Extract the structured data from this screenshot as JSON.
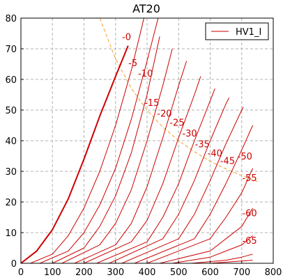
{
  "chart_data": {
    "type": "line",
    "title": "AT20",
    "xlabel": "",
    "ylabel": "",
    "xlim": [
      0,
      800
    ],
    "ylim": [
      0,
      80
    ],
    "xticks": [
      "0",
      "100",
      "200",
      "300",
      "400",
      "500",
      "600",
      "700",
      "800"
    ],
    "yticks": [
      "0",
      "10",
      "20",
      "30",
      "40",
      "50",
      "60",
      "70",
      "80"
    ],
    "grid": true,
    "legend": {
      "entries": [
        "HV1_I"
      ],
      "placement": "top-right"
    },
    "line_color": "#cc0000",
    "dissipation_color": "#f0a030",
    "series": [
      {
        "label": "-0",
        "x": [
          0,
          50,
          100,
          150,
          200,
          250,
          300,
          340
        ],
        "y": [
          0,
          4,
          11,
          21,
          34,
          48,
          61,
          71
        ]
      },
      {
        "label": "-5",
        "x": [
          30,
          100,
          150,
          200,
          250,
          300,
          350,
          390
        ],
        "y": [
          0,
          3,
          9,
          18,
          30,
          45,
          63,
          80
        ]
      },
      {
        "label": "-10",
        "x": [
          60,
          150,
          200,
          250,
          300,
          350,
          400,
          435
        ],
        "y": [
          0,
          4,
          10,
          19,
          31,
          47,
          66,
          80
        ]
      },
      {
        "label": "-15",
        "x": [
          100,
          200,
          250,
          300,
          350,
          400,
          440
        ],
        "y": [
          0,
          5,
          12,
          22,
          36,
          55,
          74
        ]
      },
      {
        "label": "-20",
        "x": [
          130,
          250,
          300,
          350,
          400,
          450,
          480
        ],
        "y": [
          0,
          6,
          13,
          24,
          40,
          58,
          70
        ]
      },
      {
        "label": "-25",
        "x": [
          170,
          300,
          350,
          400,
          450,
          500,
          525
        ],
        "y": [
          0,
          6,
          13,
          25,
          41,
          58,
          66
        ]
      },
      {
        "label": "-30",
        "x": [
          200,
          350,
          400,
          450,
          500,
          550,
          570
        ],
        "y": [
          0,
          7,
          14,
          26,
          41,
          55,
          61
        ]
      },
      {
        "label": "-35",
        "x": [
          240,
          400,
          450,
          500,
          550,
          600,
          615
        ],
        "y": [
          0,
          7,
          15,
          26,
          40,
          53,
          57
        ]
      },
      {
        "label": "-40",
        "x": [
          280,
          450,
          500,
          550,
          600,
          650,
          660
        ],
        "y": [
          0,
          8,
          16,
          27,
          40,
          52,
          54
        ]
      },
      {
        "label": "-45",
        "x": [
          320,
          500,
          550,
          600,
          650,
          700,
          705
        ],
        "y": [
          0,
          8,
          16,
          27,
          39,
          50,
          51
        ]
      },
      {
        "label": "-50",
        "x": [
          360,
          550,
          600,
          650,
          700,
          735
        ],
        "y": [
          0,
          8,
          16,
          26,
          37,
          45
        ]
      },
      {
        "label": "-55",
        "x": [
          400,
          600,
          650,
          700,
          735
        ],
        "y": [
          0,
          8,
          15,
          23,
          31
        ]
      },
      {
        "label": "-60",
        "x": [
          440,
          600,
          650,
          700,
          735
        ],
        "y": [
          0,
          4,
          8,
          12,
          18
        ]
      },
      {
        "label": "-65",
        "x": [
          480,
          600,
          650,
          700,
          735
        ],
        "y": [
          0,
          2,
          4,
          6,
          9
        ]
      },
      {
        "label": "",
        "x": [
          540,
          650,
          700,
          735
        ],
        "y": [
          0,
          1,
          2,
          3
        ]
      },
      {
        "label": "",
        "x": [
          600,
          680,
          735
        ],
        "y": [
          0,
          0.6,
          1
        ]
      }
    ],
    "dissipation_curve": {
      "x": [
        250,
        300,
        350,
        400,
        450,
        500,
        550,
        600,
        650,
        700,
        750
      ],
      "y": [
        80,
        66.7,
        57.1,
        50,
        44.4,
        40,
        36.4,
        33.3,
        30.8,
        28.6,
        26.7
      ]
    },
    "curve_labels": [
      {
        "text": "-0",
        "x": 335,
        "y": 74
      },
      {
        "text": "-5",
        "x": 355,
        "y": 65.5
      },
      {
        "text": "-10",
        "x": 395,
        "y": 62
      },
      {
        "text": "-15",
        "x": 415,
        "y": 52.5
      },
      {
        "text": "-20",
        "x": 455,
        "y": 49
      },
      {
        "text": "-25",
        "x": 495,
        "y": 46
      },
      {
        "text": "-30",
        "x": 535,
        "y": 42.5
      },
      {
        "text": "-35",
        "x": 575,
        "y": 39
      },
      {
        "text": "-40",
        "x": 615,
        "y": 36
      },
      {
        "text": "-45",
        "x": 655,
        "y": 33.5
      },
      {
        "text": "-50",
        "x": 710,
        "y": 35
      },
      {
        "text": "-55",
        "x": 725,
        "y": 28
      },
      {
        "text": "-60",
        "x": 725,
        "y": 16.5
      },
      {
        "text": "-65",
        "x": 725,
        "y": 7.5
      }
    ]
  }
}
